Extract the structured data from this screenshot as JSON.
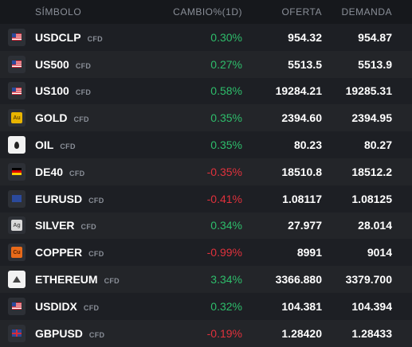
{
  "header": {
    "symbol": "SÍMBOLO",
    "change": "CAMBIO%(1D)",
    "bid": "OFERTA",
    "ask": "DEMANDA"
  },
  "rows": [
    {
      "symbol": "USDCLP",
      "type": "CFD",
      "change": "0.30%",
      "bid": "954.32",
      "ask": "954.87",
      "icon": "flag-us-cl-icon"
    },
    {
      "symbol": "US500",
      "type": "CFD",
      "change": "0.27%",
      "bid": "5513.5",
      "ask": "5513.9",
      "icon": "flag-us-icon"
    },
    {
      "symbol": "US100",
      "type": "CFD",
      "change": "0.58%",
      "bid": "19284.21",
      "ask": "19285.31",
      "icon": "flag-us-icon"
    },
    {
      "symbol": "GOLD",
      "type": "CFD",
      "change": "0.35%",
      "bid": "2394.60",
      "ask": "2394.95",
      "icon": "gold-icon",
      "icon_text": "Au"
    },
    {
      "symbol": "OIL",
      "type": "CFD",
      "change": "0.35%",
      "bid": "80.23",
      "ask": "80.27",
      "icon": "oil-icon"
    },
    {
      "symbol": "DE40",
      "type": "CFD",
      "change": "-0.35%",
      "bid": "18510.8",
      "ask": "18512.2",
      "icon": "flag-de-icon"
    },
    {
      "symbol": "EURUSD",
      "type": "CFD",
      "change": "-0.41%",
      "bid": "1.08117",
      "ask": "1.08125",
      "icon": "flag-eu-us-icon"
    },
    {
      "symbol": "SILVER",
      "type": "CFD",
      "change": "0.34%",
      "bid": "27.977",
      "ask": "28.014",
      "icon": "silver-icon",
      "icon_text": "Ag"
    },
    {
      "symbol": "COPPER",
      "type": "CFD",
      "change": "-0.99%",
      "bid": "8991",
      "ask": "9014",
      "icon": "copper-icon",
      "icon_text": "Cu"
    },
    {
      "symbol": "ETHEREUM",
      "type": "CFD",
      "change": "3.34%",
      "bid": "3366.880",
      "ask": "3379.700",
      "icon": "ethereum-icon"
    },
    {
      "symbol": "USDIDX",
      "type": "CFD",
      "change": "0.32%",
      "bid": "104.381",
      "ask": "104.394",
      "icon": "flag-us-icon"
    },
    {
      "symbol": "GBPUSD",
      "type": "CFD",
      "change": "-0.19%",
      "bid": "1.28420",
      "ask": "1.28433",
      "icon": "flag-gb-us-icon"
    }
  ],
  "colors": {
    "positive": "#2ebd6b",
    "negative": "#e0313c",
    "background": "#16181c"
  }
}
